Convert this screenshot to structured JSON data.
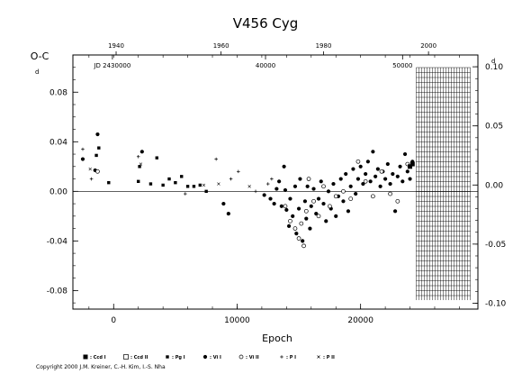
{
  "chart_data": {
    "type": "scatter",
    "title": "V456  Cyg",
    "xlabel": "Epoch",
    "ylabel": "O-C",
    "xlim": [
      -3300,
      29500
    ],
    "ylim": [
      -0.095,
      0.11
    ],
    "right_ylim": [
      -0.105,
      0.11
    ],
    "x_ticks": [
      {
        "value": 0,
        "label": "0"
      },
      {
        "value": 10000,
        "label": "10000"
      },
      {
        "value": 20000,
        "label": "20000"
      }
    ],
    "y_ticks": [
      {
        "value": 0.08,
        "label": "0.08"
      },
      {
        "value": 0.04,
        "label": "0.04"
      },
      {
        "value": 0.0,
        "label": "0.00"
      },
      {
        "value": -0.04,
        "label": "-0.04"
      },
      {
        "value": -0.08,
        "label": "-0.08"
      }
    ],
    "y2_ticks": [
      {
        "value": 0.1,
        "label": "0.10"
      },
      {
        "value": 0.05,
        "label": "0.05"
      },
      {
        "value": 0.0,
        "label": "0.00"
      },
      {
        "value": -0.05,
        "label": "-0.05"
      },
      {
        "value": -0.1,
        "label": "-0.10"
      }
    ],
    "year_ticks": [
      {
        "label": "1940",
        "epoch": 200
      },
      {
        "label": "1960",
        "epoch": 8700
      },
      {
        "label": "1980",
        "epoch": 17000
      },
      {
        "label": "2000",
        "epoch": 25500
      }
    ],
    "jd_ticks": [
      {
        "label": "JD 2430000",
        "epoch": -100
      },
      {
        "label": "40000",
        "epoch": 12300
      },
      {
        "label": "50000",
        "epoch": 23400
      }
    ],
    "y2_day_superscript": "d",
    "y_day_superscript": "d",
    "hatched_region": {
      "from_epoch": 24500,
      "to_epoch": 28900
    },
    "zero_line": 0,
    "legend": [
      {
        "symbol": "filled-square",
        "label": ": Ccd I"
      },
      {
        "symbol": "open-square",
        "label": ": Ccd II"
      },
      {
        "symbol": "small-square",
        "label": ": Pg I"
      },
      {
        "symbol": "filled-circle",
        "label": ": Vi I"
      },
      {
        "symbol": "open-circle",
        "label": ": Vi II"
      },
      {
        "symbol": "plus",
        "label": ": P I"
      },
      {
        "symbol": "cross",
        "label": ": P II"
      }
    ],
    "series": [
      {
        "name": "Pg I",
        "marker": "small-square",
        "points": [
          [
            -1400,
            0.029
          ],
          [
            -1200,
            0.035
          ],
          [
            -400,
            0.007
          ],
          [
            2000,
            0.008
          ],
          [
            2100,
            0.02
          ],
          [
            3000,
            0.006
          ],
          [
            3500,
            0.027
          ],
          [
            4000,
            0.005
          ],
          [
            4500,
            0.01
          ],
          [
            5000,
            0.007
          ],
          [
            5500,
            0.012
          ],
          [
            6000,
            0.004
          ],
          [
            6500,
            0.004
          ],
          [
            7000,
            0.005
          ],
          [
            7500,
            0.0
          ]
        ]
      },
      {
        "name": "Vi I",
        "marker": "filled-circle",
        "points": [
          [
            -1300,
            0.046
          ],
          [
            -2500,
            0.026
          ],
          [
            -1500,
            0.017
          ],
          [
            2300,
            0.032
          ],
          [
            8900,
            -0.01
          ],
          [
            9300,
            -0.018
          ],
          [
            12200,
            -0.003
          ],
          [
            12700,
            -0.006
          ],
          [
            13000,
            -0.01
          ],
          [
            13200,
            0.002
          ],
          [
            13400,
            0.008
          ],
          [
            13600,
            -0.012
          ],
          [
            13800,
            0.02
          ],
          [
            13900,
            0.001
          ],
          [
            14000,
            -0.015
          ],
          [
            14200,
            -0.028
          ],
          [
            14300,
            -0.006
          ],
          [
            14500,
            -0.02
          ],
          [
            14700,
            0.004
          ],
          [
            14800,
            -0.034
          ],
          [
            15000,
            -0.014
          ],
          [
            15100,
            0.01
          ],
          [
            15300,
            -0.04
          ],
          [
            15500,
            -0.008
          ],
          [
            15600,
            -0.022
          ],
          [
            15700,
            0.004
          ],
          [
            15900,
            -0.03
          ],
          [
            16000,
            -0.012
          ],
          [
            16200,
            0.002
          ],
          [
            16400,
            -0.018
          ],
          [
            16600,
            -0.006
          ],
          [
            16800,
            0.008
          ],
          [
            17000,
            -0.01
          ],
          [
            17200,
            -0.024
          ],
          [
            17400,
            0.0
          ],
          [
            17600,
            -0.014
          ],
          [
            17800,
            0.006
          ],
          [
            18000,
            -0.02
          ],
          [
            18200,
            -0.004
          ],
          [
            18400,
            0.01
          ],
          [
            18600,
            -0.008
          ],
          [
            18800,
            0.014
          ],
          [
            19000,
            -0.016
          ],
          [
            19200,
            0.004
          ],
          [
            19400,
            0.018
          ],
          [
            19600,
            -0.002
          ],
          [
            19800,
            0.01
          ],
          [
            20000,
            0.02
          ],
          [
            20200,
            0.006
          ],
          [
            20400,
            0.014
          ],
          [
            20600,
            0.024
          ],
          [
            20800,
            0.008
          ],
          [
            21000,
            0.032
          ],
          [
            21200,
            0.012
          ],
          [
            21400,
            0.018
          ],
          [
            21600,
            0.004
          ],
          [
            21800,
            0.016
          ],
          [
            22000,
            0.01
          ],
          [
            22200,
            0.022
          ],
          [
            22400,
            0.006
          ],
          [
            22600,
            0.014
          ],
          [
            22800,
            -0.016
          ],
          [
            23000,
            0.012
          ],
          [
            23200,
            0.02
          ],
          [
            23400,
            0.008
          ],
          [
            23600,
            0.03
          ],
          [
            23800,
            0.016
          ],
          [
            24000,
            0.01
          ],
          [
            24200,
            0.024
          ]
        ]
      },
      {
        "name": "Vi II",
        "marker": "open-circle",
        "points": [
          [
            -1300,
            0.016
          ],
          [
            13900,
            -0.012
          ],
          [
            14300,
            -0.024
          ],
          [
            14700,
            -0.03
          ],
          [
            15000,
            -0.038
          ],
          [
            15200,
            -0.026
          ],
          [
            15400,
            -0.044
          ],
          [
            15600,
            -0.016
          ],
          [
            15800,
            0.01
          ],
          [
            16200,
            -0.008
          ],
          [
            16600,
            -0.02
          ],
          [
            17000,
            0.004
          ],
          [
            17500,
            -0.012
          ],
          [
            18000,
            -0.004
          ],
          [
            18600,
            0.0
          ],
          [
            19200,
            -0.006
          ],
          [
            19800,
            0.024
          ],
          [
            20400,
            0.008
          ],
          [
            21000,
            -0.004
          ],
          [
            21700,
            0.016
          ],
          [
            22400,
            -0.002
          ],
          [
            23000,
            -0.008
          ],
          [
            23800,
            0.022
          ]
        ]
      },
      {
        "name": "Ccd I",
        "marker": "filled-square",
        "points": [
          [
            24000,
            0.02
          ],
          [
            24200,
            0.022
          ]
        ]
      },
      {
        "name": "P I",
        "marker": "plus",
        "points": [
          [
            -2500,
            0.034
          ],
          [
            -1800,
            0.01
          ],
          [
            2000,
            0.028
          ],
          [
            5800,
            -0.002
          ],
          [
            8300,
            0.026
          ],
          [
            9500,
            0.01
          ],
          [
            10100,
            0.016
          ],
          [
            11500,
            0.0
          ],
          [
            12500,
            0.006
          ],
          [
            12800,
            0.01
          ]
        ]
      },
      {
        "name": "P II",
        "marker": "cross",
        "points": [
          [
            -1900,
            0.018
          ],
          [
            2200,
            0.022
          ],
          [
            7300,
            0.005
          ],
          [
            8500,
            0.006
          ],
          [
            11000,
            0.004
          ]
        ]
      }
    ]
  },
  "copyright": "Copyright 2000 J.M. Kreiner, C.-H. Kim, I.-S. Nha"
}
